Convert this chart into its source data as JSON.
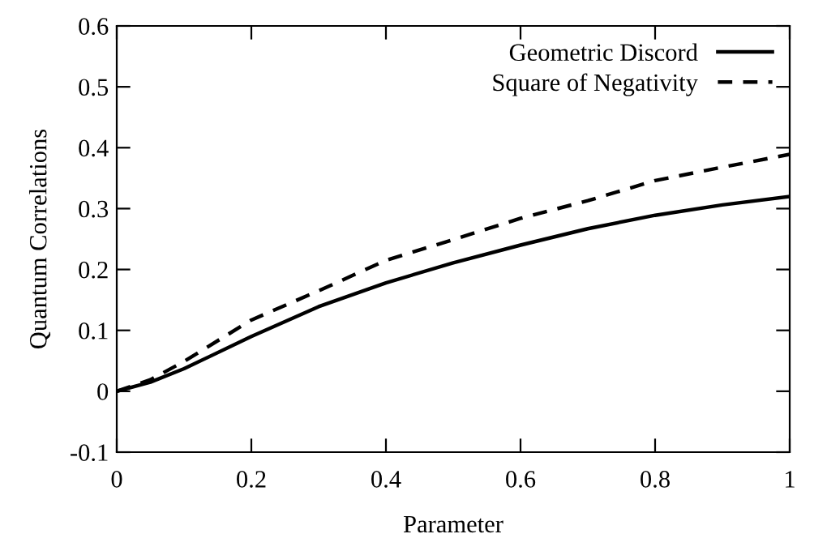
{
  "chart_data": {
    "type": "line",
    "xlabel": "Parameter",
    "ylabel": "Quantum Correlations",
    "x": [
      0,
      0.05,
      0.1,
      0.2,
      0.3,
      0.4,
      0.5,
      0.6,
      0.7,
      0.8,
      0.9,
      1
    ],
    "series": [
      {
        "name": "Geometric Discord",
        "color": "#000000",
        "line_style": "solid",
        "values": [
          0,
          0.015,
          0.037,
          0.09,
          0.139,
          0.178,
          0.211,
          0.24,
          0.267,
          0.289,
          0.306,
          0.32
        ]
      },
      {
        "name": "Square of Negativity",
        "color": "#000000",
        "line_style": "dashed",
        "values": [
          0,
          0.019,
          0.049,
          0.117,
          0.165,
          0.215,
          0.249,
          0.284,
          0.313,
          0.346,
          0.368,
          0.389
        ]
      }
    ],
    "xlim": [
      0,
      1
    ],
    "xticks": [
      0,
      0.2,
      0.4,
      0.6,
      0.8,
      1
    ],
    "ylim": [
      -0.1,
      0.6
    ],
    "yticks": [
      -0.1,
      0,
      0.1,
      0.2,
      0.3,
      0.4,
      0.5,
      0.6
    ],
    "grid": false,
    "legend": "top right",
    "marker": "none"
  }
}
